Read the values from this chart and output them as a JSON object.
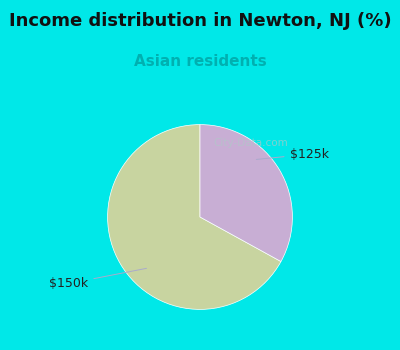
{
  "title": "Income distribution in Newton, NJ (%)",
  "subtitle": "Asian residents",
  "subtitle_color": "#00b0b0",
  "title_fontsize": 13,
  "subtitle_fontsize": 11,
  "slices": [
    {
      "label": "$150k",
      "value": 67,
      "color": "#c8d4a0"
    },
    {
      "label": "$125k",
      "value": 33,
      "color": "#c8aed4"
    }
  ],
  "bg_color": "#00e8e8",
  "startangle": 90,
  "watermark": "City-Data.com"
}
